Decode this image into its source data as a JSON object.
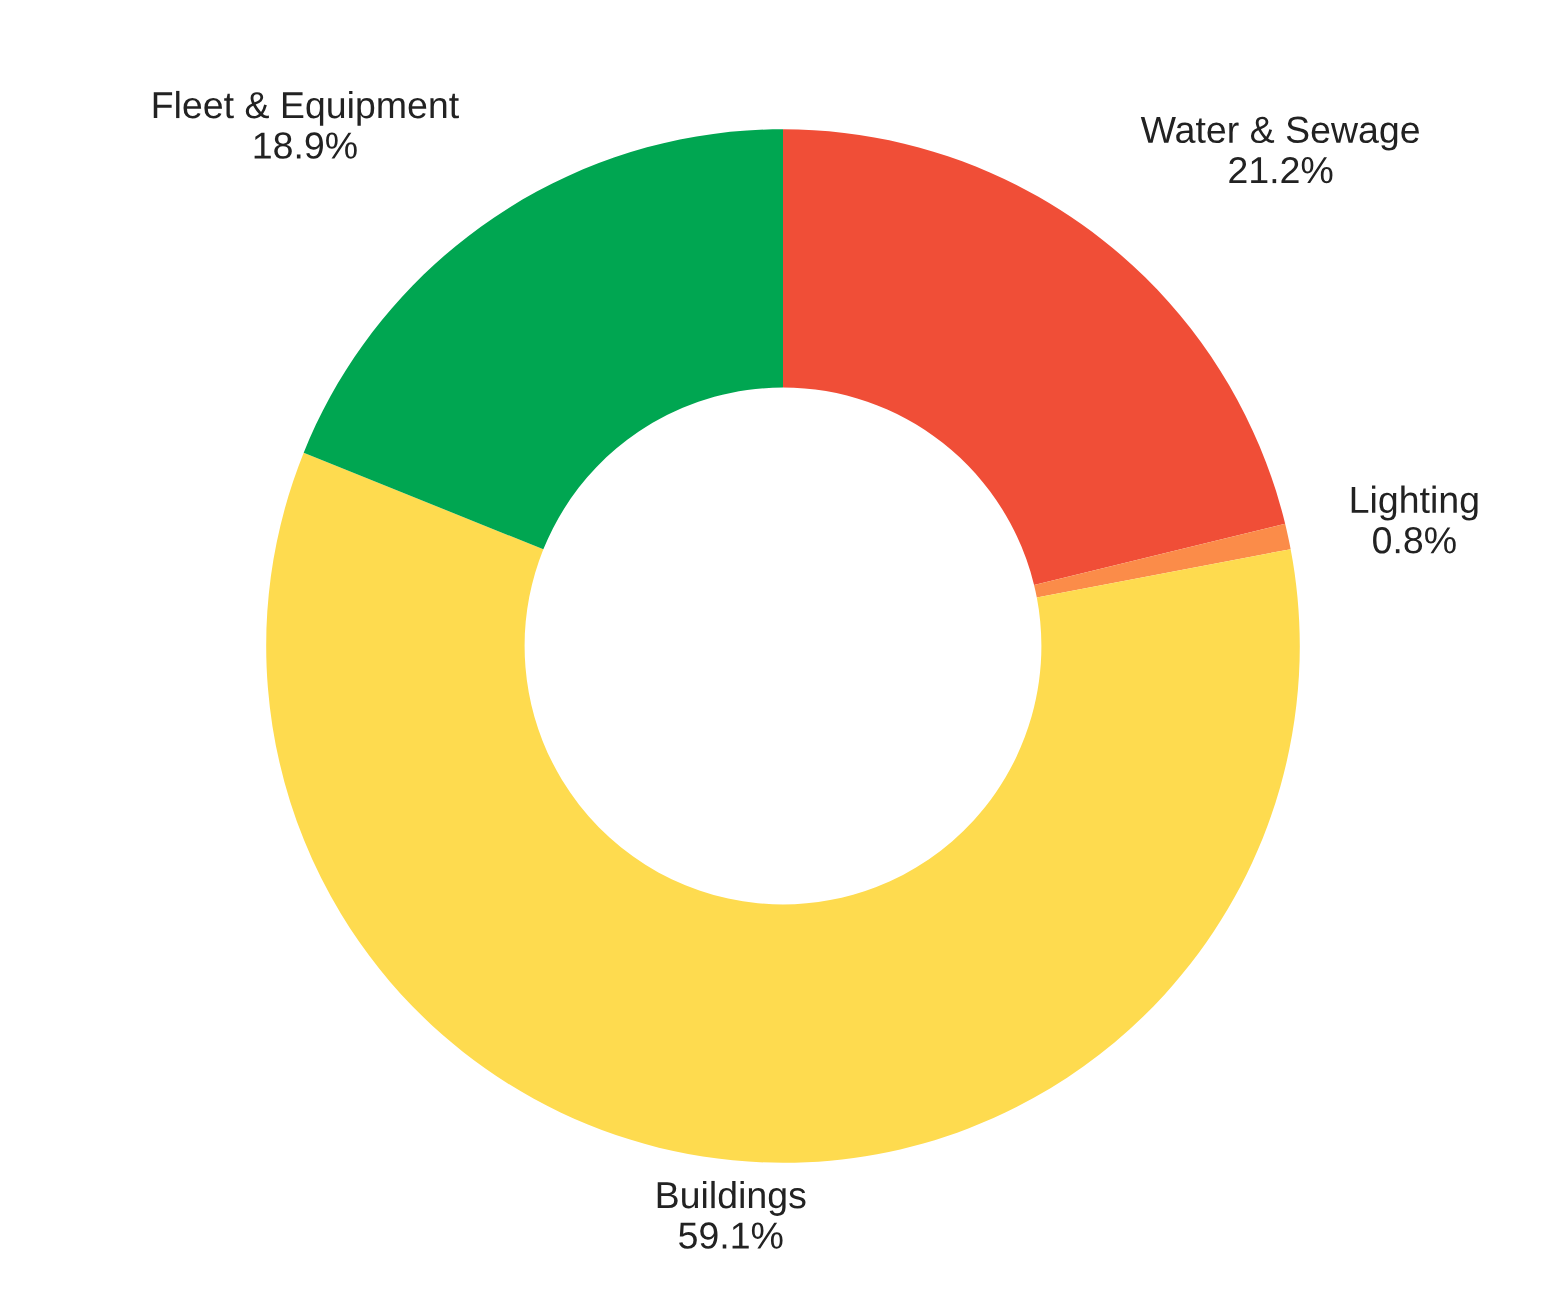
{
  "chart_data": {
    "type": "donut",
    "categories": [
      "Water & Sewage",
      "Lighting",
      "Buildings",
      "Fleet & Equipment"
    ],
    "values": [
      21.2,
      0.8,
      59.1,
      18.9
    ],
    "colors": [
      "#f04e37",
      "#fb8c49",
      "#fedb4f",
      "#00a651"
    ],
    "value_labels": [
      "21.2%",
      "0.8%",
      "59.1%",
      "18.9%"
    ],
    "legend": false
  }
}
